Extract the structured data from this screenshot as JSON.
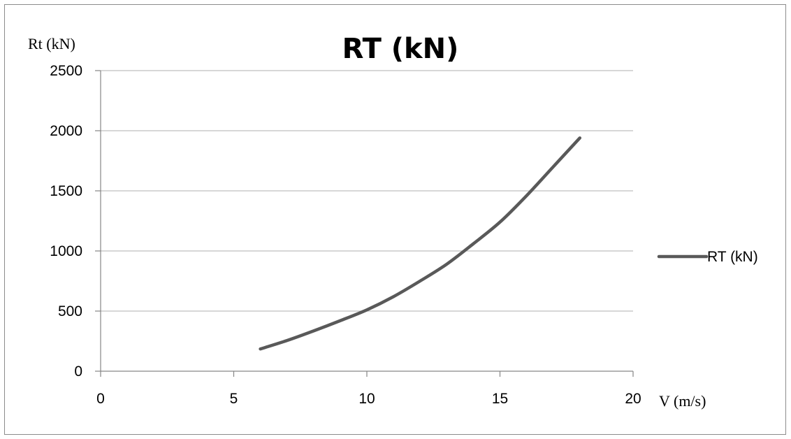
{
  "chart_data": {
    "type": "line",
    "title": "RT (kN)",
    "xlabel": "V (m/s)",
    "ylabel": "Rt (kN)",
    "xlim": [
      0,
      20
    ],
    "ylim": [
      0,
      2500
    ],
    "xticks": [
      0,
      5,
      10,
      15,
      20
    ],
    "yticks": [
      0,
      500,
      1000,
      1500,
      2000,
      2500
    ],
    "grid": "horizontal",
    "legend_position": "right",
    "series": [
      {
        "name": "RT (kN)",
        "color": "#595959",
        "x": [
          6,
          7,
          8,
          9,
          10,
          11,
          12,
          13,
          14,
          15,
          16,
          17,
          18
        ],
        "y": [
          185,
          255,
          335,
          420,
          510,
          620,
          750,
          890,
          1060,
          1240,
          1460,
          1700,
          1940
        ]
      }
    ]
  }
}
